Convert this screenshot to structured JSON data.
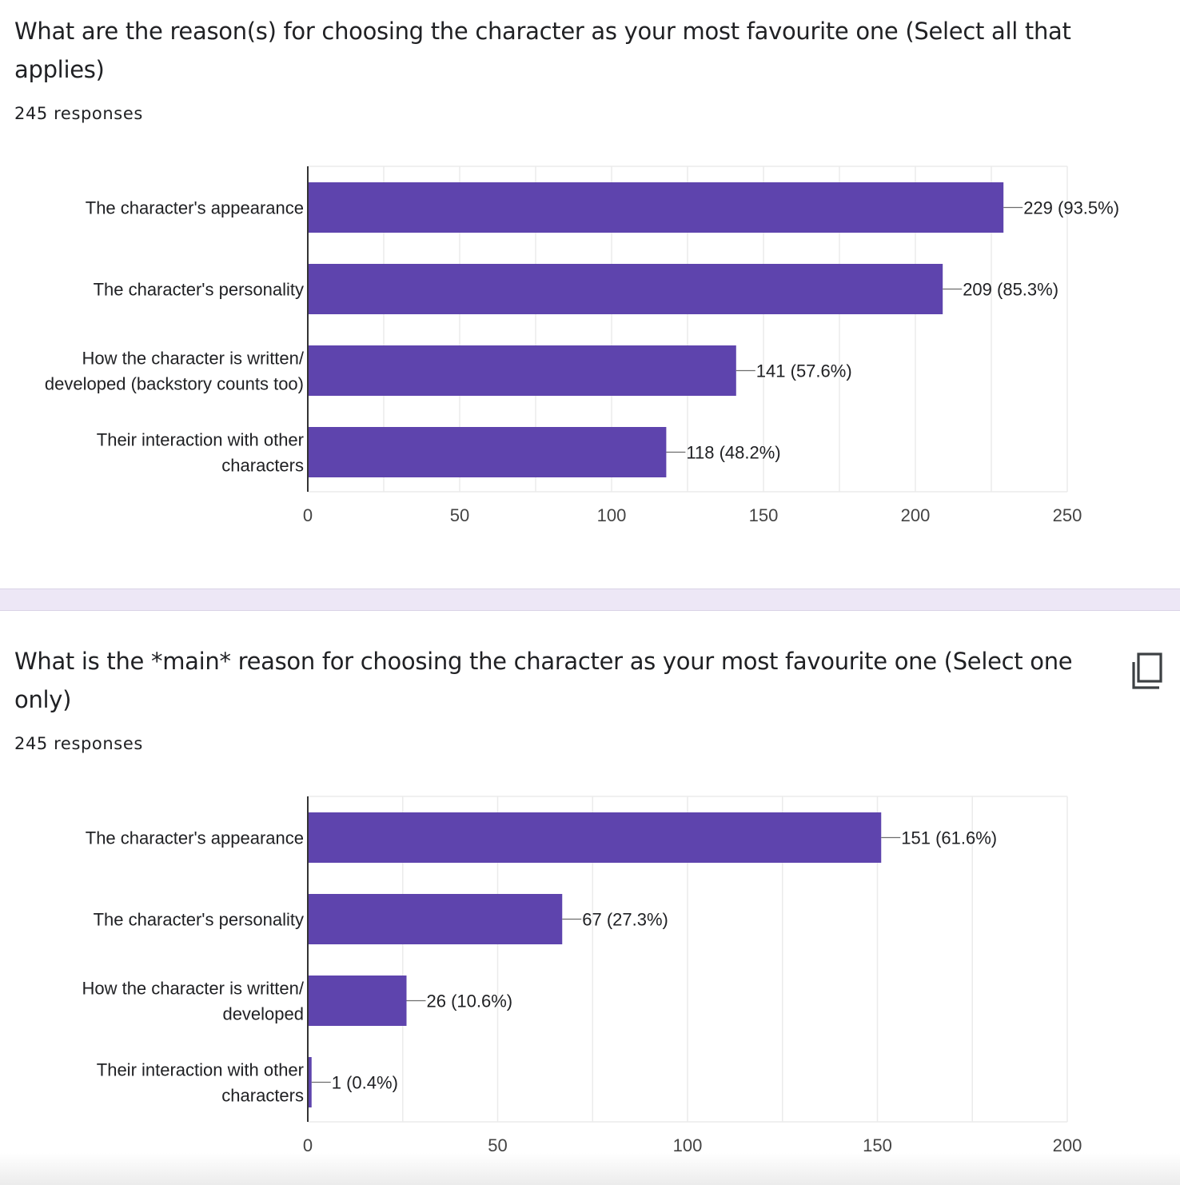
{
  "colors": {
    "bar": "#5e44ad",
    "grid": "#ebebeb",
    "axis": "#333333",
    "text": "#202124",
    "divider": "#ede7f6"
  },
  "questions": [
    {
      "title": "What are the reason(s) for choosing the character as your most favourite one (Select all that applies)",
      "responses": "245 responses",
      "has_copy_icon": false
    },
    {
      "title": "What is the *main* reason for choosing the character as your most favourite one (Select one only)",
      "responses": "245 responses",
      "has_copy_icon": true,
      "copy_icon": "copy-icon"
    }
  ],
  "chart_data": [
    {
      "type": "bar",
      "orientation": "horizontal",
      "title": "",
      "categories": [
        [
          "The character's appearance"
        ],
        [
          "The character's personality"
        ],
        [
          "How the character is written/",
          "developed (backstory counts too)"
        ],
        [
          "Their interaction with other",
          "characters"
        ]
      ],
      "values": [
        229,
        209,
        141,
        118
      ],
      "data_labels": [
        "229 (93.5%)",
        "209 (85.3%)",
        "141 (57.6%)",
        "118 (48.2%)"
      ],
      "xlim": [
        0,
        250
      ],
      "xticks": [
        0,
        50,
        100,
        150,
        200,
        250
      ],
      "minor_grid_step": 25,
      "grid": true,
      "legend": "none"
    },
    {
      "type": "bar",
      "orientation": "horizontal",
      "title": "",
      "categories": [
        [
          "The character's appearance"
        ],
        [
          "The character's personality"
        ],
        [
          "How the character is written/",
          "developed"
        ],
        [
          "Their interaction with other",
          "characters"
        ]
      ],
      "values": [
        151,
        67,
        26,
        1
      ],
      "data_labels": [
        "151 (61.6%)",
        "67 (27.3%)",
        "26 (10.6%)",
        "1 (0.4%)"
      ],
      "xlim": [
        0,
        200
      ],
      "xticks": [
        0,
        50,
        100,
        150,
        200
      ],
      "minor_grid_step": 25,
      "grid": true,
      "legend": "none"
    }
  ]
}
